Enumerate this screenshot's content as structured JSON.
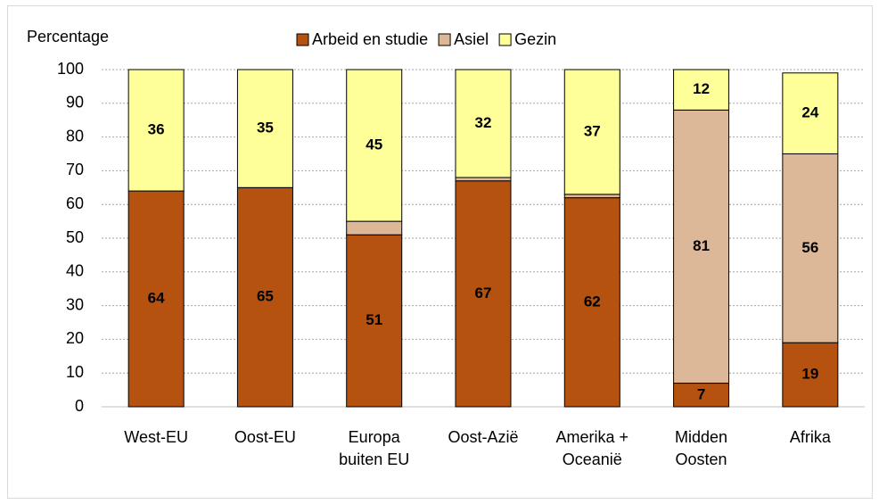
{
  "chart_data": {
    "type": "stacked-bar",
    "y_axis_label": "Percentage",
    "categories": [
      "West-EU",
      "Oost-EU",
      "Europa\nbuiten EU",
      "Oost-Azië",
      "Amerika +\nOceanië",
      "Midden\nOosten",
      "Afrika"
    ],
    "series": [
      {
        "name": "Arbeid en studie",
        "color": "#b5520f",
        "values": [
          64,
          65,
          51,
          67,
          62,
          7,
          19
        ]
      },
      {
        "name": "Asiel",
        "color": "#dcb898",
        "values": [
          0,
          0,
          4,
          1,
          1,
          81,
          56
        ],
        "value_labels": [
          null,
          null,
          null,
          null,
          null,
          "81",
          "56"
        ]
      },
      {
        "name": "Gezin",
        "color": "#ffff99",
        "values": [
          36,
          35,
          45,
          32,
          37,
          12,
          24
        ]
      }
    ],
    "ylim": [
      0,
      100
    ],
    "yticks": [
      0,
      10,
      20,
      30,
      40,
      50,
      60,
      70,
      80,
      90,
      100
    ],
    "grid": true,
    "legend": "top"
  }
}
